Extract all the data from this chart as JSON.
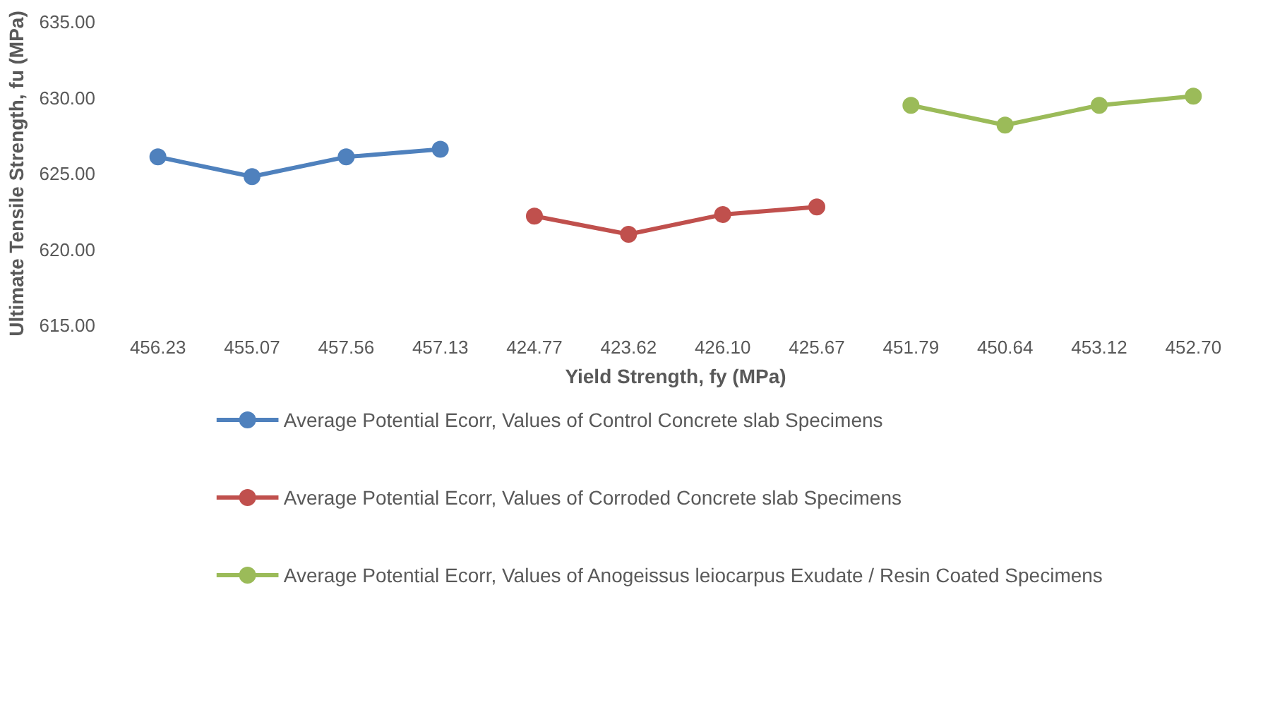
{
  "chart_data": {
    "type": "line",
    "xlabel": "Yield Strength, fy (MPa)",
    "ylabel": "Ultimate Tensile Strength, fu (MPa)",
    "categories": [
      "456.23",
      "455.07",
      "457.56",
      "457.13",
      "424.77",
      "423.62",
      "426.10",
      "425.67",
      "451.79",
      "450.64",
      "453.12",
      "452.70"
    ],
    "series": [
      {
        "name": "Average Potential  Ecorr, Values of   Control  Concrete slab Specimens",
        "color": "#4f81bd",
        "values": [
          626.1,
          624.8,
          626.1,
          626.6,
          null,
          null,
          null,
          null,
          null,
          null,
          null,
          null
        ]
      },
      {
        "name": "Average Potential  Ecorr, Values of  Corroded Concrete slab Specimens",
        "color": "#c0504d",
        "values": [
          null,
          null,
          null,
          null,
          622.2,
          621.0,
          622.3,
          622.8,
          null,
          null,
          null,
          null
        ]
      },
      {
        "name": "Average Potential  Ecorr, Values of Anogeissus leiocarpus  Exudate / Resin Coated Specimens",
        "color": "#9bbb59",
        "values": [
          null,
          null,
          null,
          null,
          null,
          null,
          null,
          null,
          629.5,
          628.2,
          629.5,
          630.1
        ]
      }
    ],
    "ylim": [
      615,
      635
    ],
    "yticks": [
      {
        "value": 615,
        "label": "615.00"
      },
      {
        "value": 620,
        "label": "620.00"
      },
      {
        "value": 625,
        "label": "625.00"
      },
      {
        "value": 630,
        "label": "630.00"
      },
      {
        "value": 635,
        "label": "635.00"
      }
    ],
    "grid": false,
    "legend": "bottom",
    "marker": "circle",
    "line_style": "solid"
  }
}
